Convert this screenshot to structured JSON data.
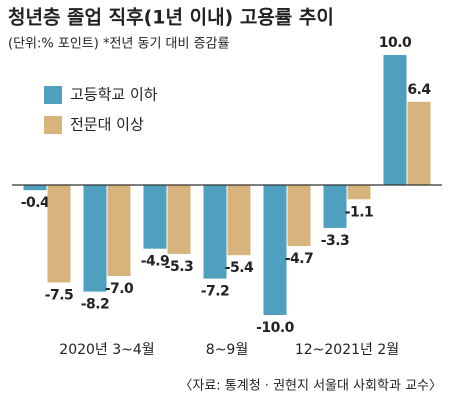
{
  "chart_data": {
    "type": "bar",
    "title": "청년층 졸업 직후(1년 이내) 고용률 추이",
    "subtitle": "(단위:% 포인트) *전년 동기 대비 증감률",
    "source": "〈자료: 통계청 · 권현지 서울대 사회학과 교수〉",
    "categories": [
      null,
      "2020년 3~4월",
      null,
      "8~9월",
      null,
      "12~2021년 2월",
      null
    ],
    "series": [
      {
        "name": "고등학교 이하",
        "color": "#4f9fbf",
        "values": [
          -0.4,
          -8.2,
          -4.9,
          -7.2,
          -10,
          -3.3,
          10
        ],
        "value_labels": [
          "-0.4",
          "-8.2",
          "-4.9",
          "-7.2",
          "-10.0",
          "-3.3",
          "10.0"
        ]
      },
      {
        "name": "전문대 이상",
        "color": "#d6b47c",
        "values": [
          -7.5,
          -7,
          -5.3,
          -5.4,
          -4.7,
          -1.1,
          6.4
        ],
        "value_labels": [
          "-7.5",
          "-7.0",
          "-5.3",
          "-5.4",
          "-4.7",
          "-1.1",
          "6.4"
        ]
      }
    ],
    "ylim": [
      -10,
      10
    ],
    "legend": "upper left"
  }
}
